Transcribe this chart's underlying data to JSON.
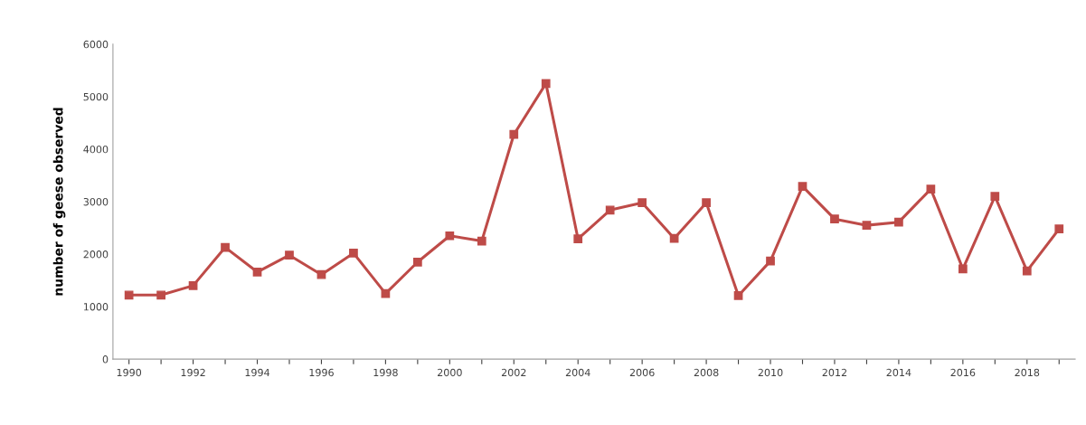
{
  "chart_data": {
    "type": "line",
    "ylabel": "number of geese observed",
    "x": [
      1990,
      1991,
      1992,
      1993,
      1994,
      1995,
      1996,
      1997,
      1998,
      1999,
      2000,
      2001,
      2002,
      2003,
      2004,
      2005,
      2006,
      2007,
      2008,
      2009,
      2010,
      2011,
      2012,
      2013,
      2014,
      2015,
      2016,
      2017,
      2018,
      2019
    ],
    "series": [
      {
        "color": "#be4b48",
        "values": [
          1220,
          1220,
          1400,
          2130,
          1660,
          1980,
          1610,
          2020,
          1250,
          1850,
          2350,
          2250,
          4280,
          5250,
          2290,
          2840,
          2980,
          2300,
          2980,
          1210,
          1870,
          3290,
          2670,
          2550,
          2610,
          3240,
          1720,
          3100,
          1680,
          2480
        ]
      }
    ],
    "xlim": [
      1989.5,
      2019.5
    ],
    "xticks": [
      1990,
      {
        "value": 1991,
        "label": null
      },
      1992,
      {
        "value": 1993,
        "label": null
      },
      1994,
      {
        "value": 1995,
        "label": null
      },
      1996,
      {
        "value": 1997,
        "label": null
      },
      1998,
      {
        "value": 1999,
        "label": null
      },
      2000,
      {
        "value": 2001,
        "label": null
      },
      2002,
      {
        "value": 2003,
        "label": null
      },
      2004,
      {
        "value": 2005,
        "label": null
      },
      2006,
      {
        "value": 2007,
        "label": null
      },
      2008,
      {
        "value": 2009,
        "label": null
      },
      2010,
      {
        "value": 2011,
        "label": null
      },
      2012,
      {
        "value": 2013,
        "label": null
      },
      2014,
      {
        "value": 2015,
        "label": null
      },
      2016,
      {
        "value": 2017,
        "label": null
      },
      2018,
      {
        "value": 2019,
        "label": null
      }
    ],
    "ylim": [
      0,
      6000
    ],
    "yticks": [
      0,
      1000,
      2000,
      3000,
      4000,
      5000,
      6000
    ],
    "grid": false,
    "legend": false,
    "marker": "square",
    "line_style": "solid"
  }
}
